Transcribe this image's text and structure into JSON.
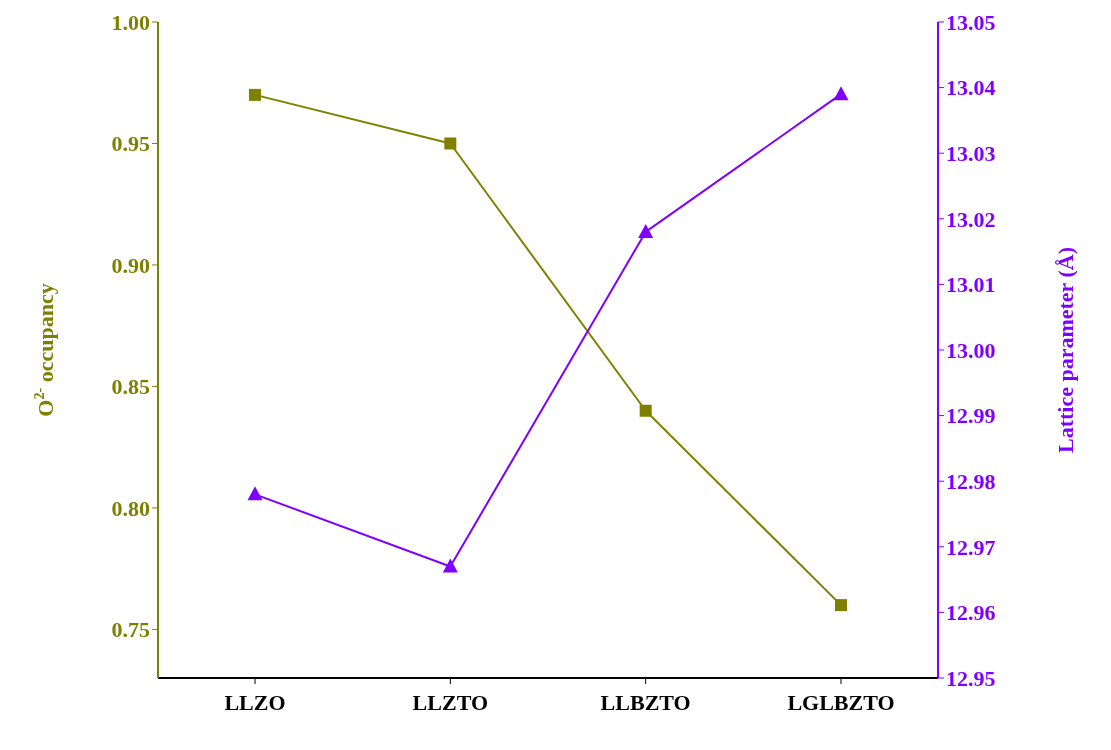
{
  "chart_data": {
    "type": "line",
    "categories": [
      "LLZO",
      "LLZTO",
      "LLBZTO",
      "LGLBZTO"
    ],
    "ylabel": "O$^{2-}$ occupancy",
    "y2label": "Lattice parameter (Å)",
    "series": [
      {
        "color": "#808000",
        "marker": "square",
        "values": [
          0.97,
          0.95,
          0.84,
          0.76
        ]
      },
      {
        "color": "#8000ff",
        "marker": "triangle",
        "axis": "y2",
        "values": [
          12.978,
          12.967,
          13.018,
          13.039
        ]
      }
    ],
    "ylim": [
      0.73,
      1.0
    ],
    "yticks": [
      0.75,
      {
        "value": 0.8,
        "label": "0.80"
      },
      0.85,
      {
        "value": 0.9,
        "label": "0.90"
      },
      0.95,
      {
        "value": 1.0,
        "label": "1.00"
      }
    ],
    "y2lim": [
      12.95,
      13.05
    ],
    "y2ticks": [
      12.95,
      12.96,
      12.97,
      12.98,
      12.99,
      {
        "value": 13.0,
        "label": "13.00"
      },
      13.01,
      13.02,
      13.03,
      13.04,
      13.05
    ],
    "grid": false,
    "legend": false
  }
}
